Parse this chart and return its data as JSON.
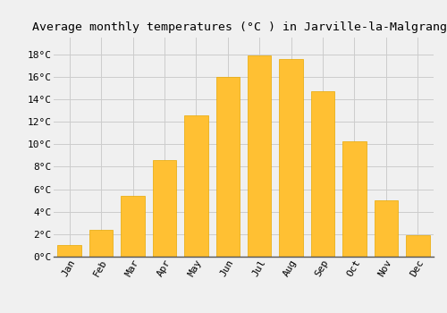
{
  "title": "Average monthly temperatures (°C ) in Jarville-la-Malgrange",
  "months": [
    "Jan",
    "Feb",
    "Mar",
    "Apr",
    "May",
    "Jun",
    "Jul",
    "Aug",
    "Sep",
    "Oct",
    "Nov",
    "Dec"
  ],
  "values": [
    1.0,
    2.4,
    5.4,
    8.6,
    12.6,
    16.0,
    17.9,
    17.6,
    14.7,
    10.3,
    5.0,
    1.9
  ],
  "bar_color": "#FFC033",
  "bar_edge_color": "#E8A800",
  "ylim": [
    0,
    19.5
  ],
  "yticks": [
    0,
    2,
    4,
    6,
    8,
    10,
    12,
    14,
    16,
    18
  ],
  "ytick_labels": [
    "0°C",
    "2°C",
    "4°C",
    "6°C",
    "8°C",
    "10°C",
    "12°C",
    "14°C",
    "16°C",
    "18°C"
  ],
  "background_color": "#F0F0F0",
  "grid_color": "#CCCCCC",
  "title_fontsize": 9.5,
  "tick_fontsize": 8,
  "font_family": "monospace",
  "bar_width": 0.75
}
